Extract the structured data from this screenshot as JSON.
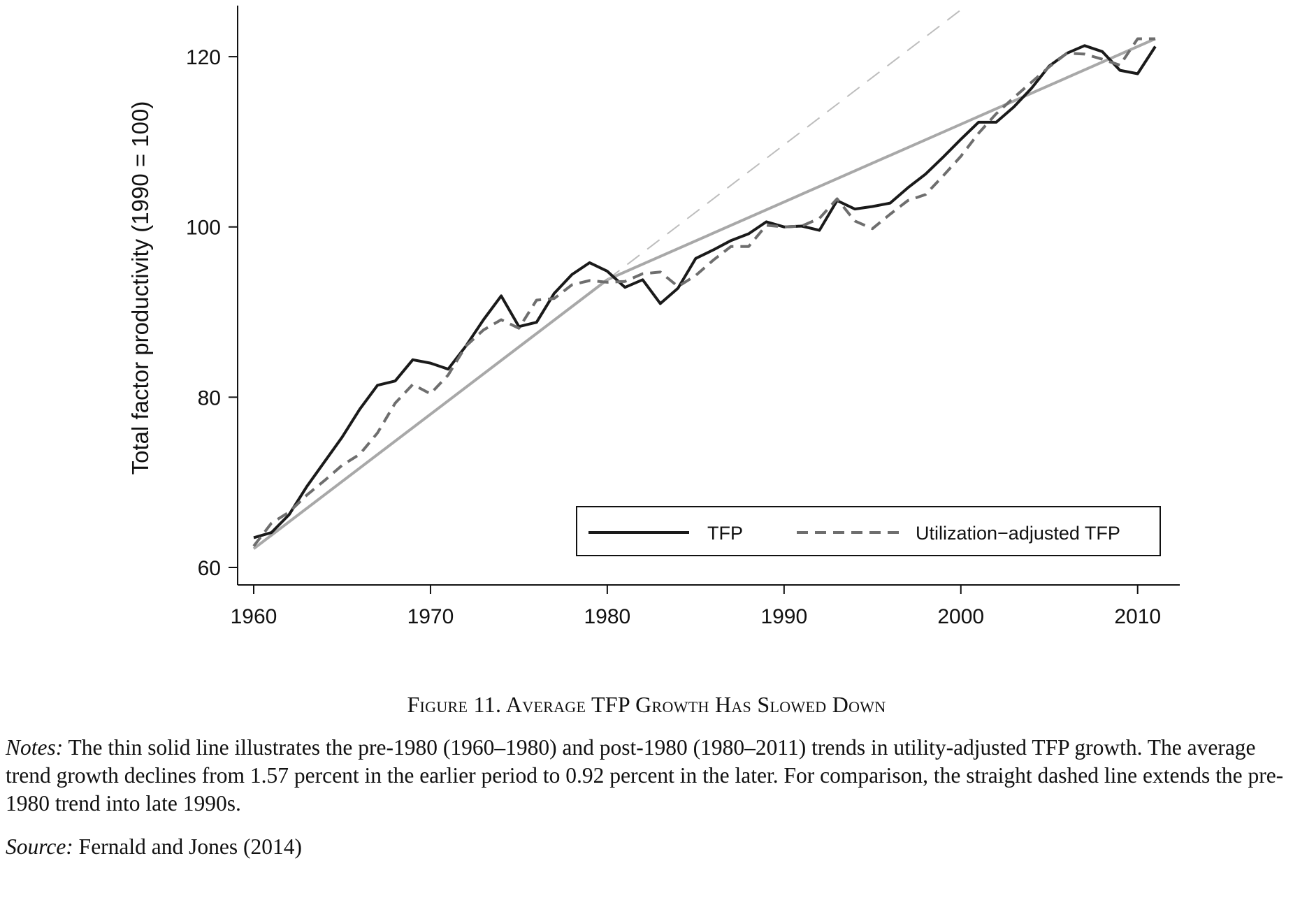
{
  "chart_data": {
    "type": "line",
    "title": "",
    "xlabel": "",
    "ylabel": "Total factor productivity (1990 = 100)",
    "xlim": [
      1960,
      2011
    ],
    "ylim": [
      60,
      126
    ],
    "xticks": [
      1960,
      1970,
      1980,
      1990,
      2000,
      2010
    ],
    "yticks": [
      60,
      80,
      100,
      120
    ],
    "grid": false,
    "legend_position": "bottom-right",
    "series": [
      {
        "name": "TFP",
        "style": "solid",
        "color": "#1a1a1a",
        "x": [
          1960,
          1961,
          1962,
          1963,
          1964,
          1965,
          1966,
          1967,
          1968,
          1969,
          1970,
          1971,
          1972,
          1973,
          1974,
          1975,
          1976,
          1977,
          1978,
          1979,
          1980,
          1981,
          1982,
          1983,
          1984,
          1985,
          1986,
          1987,
          1988,
          1989,
          1990,
          1991,
          1992,
          1993,
          1994,
          1995,
          1996,
          1997,
          1998,
          1999,
          2000,
          2001,
          2002,
          2003,
          2004,
          2005,
          2006,
          2007,
          2008,
          2009,
          2010,
          2011
        ],
        "y": [
          63.5,
          64.1,
          66.2,
          69.5,
          72.4,
          75.3,
          78.6,
          81.4,
          81.9,
          84.4,
          84.0,
          83.3,
          86.0,
          89.1,
          91.9,
          88.3,
          88.8,
          92.2,
          94.4,
          95.8,
          94.8,
          92.9,
          93.8,
          91.0,
          92.8,
          96.3,
          97.3,
          98.4,
          99.2,
          100.6,
          100.0,
          100.1,
          99.6,
          103.1,
          102.1,
          102.4,
          102.8,
          104.6,
          106.2,
          108.2,
          110.3,
          112.3,
          112.3,
          114.1,
          116.3,
          118.9,
          120.4,
          121.3,
          120.6,
          118.4,
          118.0,
          121.2
        ]
      },
      {
        "name": "Utilization−adjusted TFP",
        "style": "dashed",
        "color": "#6e6e6e",
        "x": [
          1960,
          1961,
          1962,
          1963,
          1964,
          1965,
          1966,
          1967,
          1968,
          1969,
          1970,
          1971,
          1972,
          1973,
          1974,
          1975,
          1976,
          1977,
          1978,
          1979,
          1980,
          1981,
          1982,
          1983,
          1984,
          1985,
          1986,
          1987,
          1988,
          1989,
          1990,
          1991,
          1992,
          1993,
          1994,
          1995,
          1996,
          1997,
          1998,
          1999,
          2000,
          2001,
          2002,
          2003,
          2004,
          2005,
          2006,
          2007,
          2008,
          2009,
          2010,
          2011
        ],
        "y": [
          62.5,
          65.2,
          66.5,
          68.5,
          70.2,
          72.0,
          73.3,
          75.8,
          79.3,
          81.5,
          80.4,
          82.6,
          86.0,
          87.9,
          89.1,
          88.1,
          91.4,
          91.6,
          93.2,
          93.7,
          93.5,
          93.6,
          94.5,
          94.7,
          93.0,
          94.3,
          96.1,
          97.7,
          97.7,
          100.2,
          100.0,
          100.1,
          101.0,
          103.3,
          100.7,
          99.8,
          101.5,
          103.1,
          103.8,
          106.0,
          108.3,
          111.0,
          113.3,
          115.2,
          117.0,
          118.8,
          120.4,
          120.3,
          119.7,
          119.0,
          122.1,
          122.1
        ]
      }
    ],
    "trend_lines": [
      {
        "style": "thin-solid",
        "color": "#a8a8a8",
        "x": [
          1960,
          1980
        ],
        "y": [
          62.2,
          93.8
        ]
      },
      {
        "style": "thin-solid",
        "color": "#a8a8a8",
        "x": [
          1980,
          2011
        ],
        "y": [
          93.8,
          122.1
        ]
      },
      {
        "style": "thin-dashed",
        "color": "#bdbdbd",
        "x": [
          1980,
          2000
        ],
        "y": [
          93.8,
          125.5
        ]
      }
    ]
  },
  "caption": "Figure 11. Average TFP Growth Has Slowed Down",
  "notes": {
    "label": "Notes:",
    "text": " The thin solid line illustrates the pre-1980 (1960–1980) and post-1980 (1980–2011) trends in utility-adjusted TFP growth. The average trend growth declines from 1.57 percent in the earlier period to 0.92 percent in the later. For comparison, the straight dashed line extends the pre-1980 trend into late 1990s."
  },
  "source": {
    "label": "Source:",
    "text": " Fernald and Jones (2014)"
  }
}
